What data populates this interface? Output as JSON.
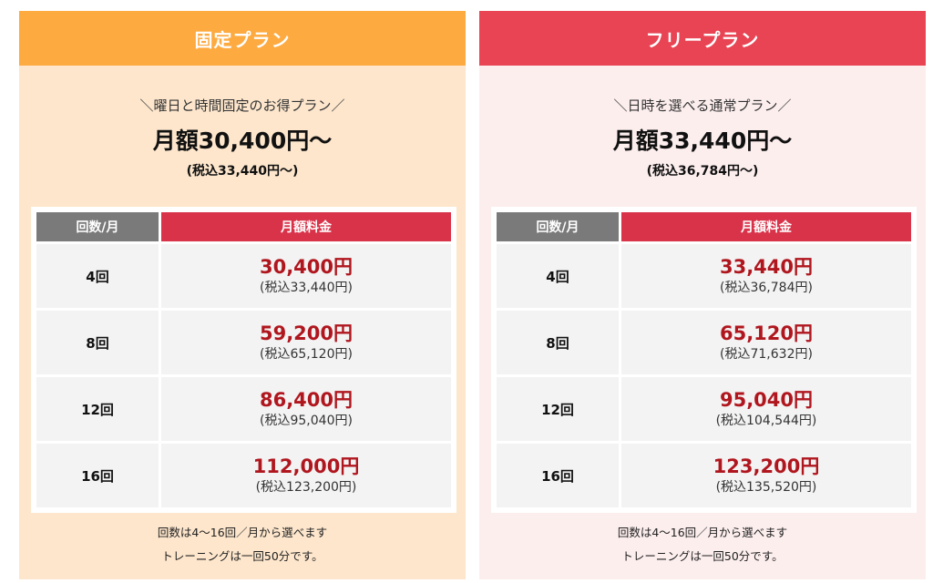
{
  "plans": {
    "fixed": {
      "title": "固定プラン",
      "tagline": "＼曜日と時間固定のお得プラン／",
      "headline": "月額30,400円～",
      "subline": "(税込33,440円～)",
      "col_count": "回数/月",
      "col_price": "月額料金",
      "rows": [
        {
          "count": "4回",
          "price": "30,400円",
          "tax": "(税込33,440円)"
        },
        {
          "count": "8回",
          "price": "59,200円",
          "tax": "(税込65,120円)"
        },
        {
          "count": "12回",
          "price": "86,400円",
          "tax": "(税込95,040円)"
        },
        {
          "count": "16回",
          "price": "112,000円",
          "tax": "(税込123,200円)"
        }
      ],
      "note1": "回数は4～16回／月から選べます",
      "note2": "トレーニングは一回50分です。"
    },
    "free": {
      "title": "フリープラン",
      "tagline": "＼日時を選べる通常プラン／",
      "headline": "月額33,440円～",
      "subline": "(税込36,784円～)",
      "col_count": "回数/月",
      "col_price": "月額料金",
      "rows": [
        {
          "count": "4回",
          "price": "33,440円",
          "tax": "(税込36,784円)"
        },
        {
          "count": "8回",
          "price": "65,120円",
          "tax": "(税込71,632円)"
        },
        {
          "count": "12回",
          "price": "95,040円",
          "tax": "(税込104,544円)"
        },
        {
          "count": "16回",
          "price": "123,200円",
          "tax": "(税込135,520円)"
        }
      ],
      "note1": "回数は4～16回／月から選べます",
      "note2": "トレーニングは一回50分です。"
    }
  },
  "colors": {
    "fixed_header": "#fdaa40",
    "fixed_bg": "#fde6cc",
    "free_header": "#e84454",
    "free_bg": "#fdeeee",
    "price_red": "#b0161e",
    "col_price_header": "#d9334a",
    "col_count_header": "#7a7a7a"
  }
}
